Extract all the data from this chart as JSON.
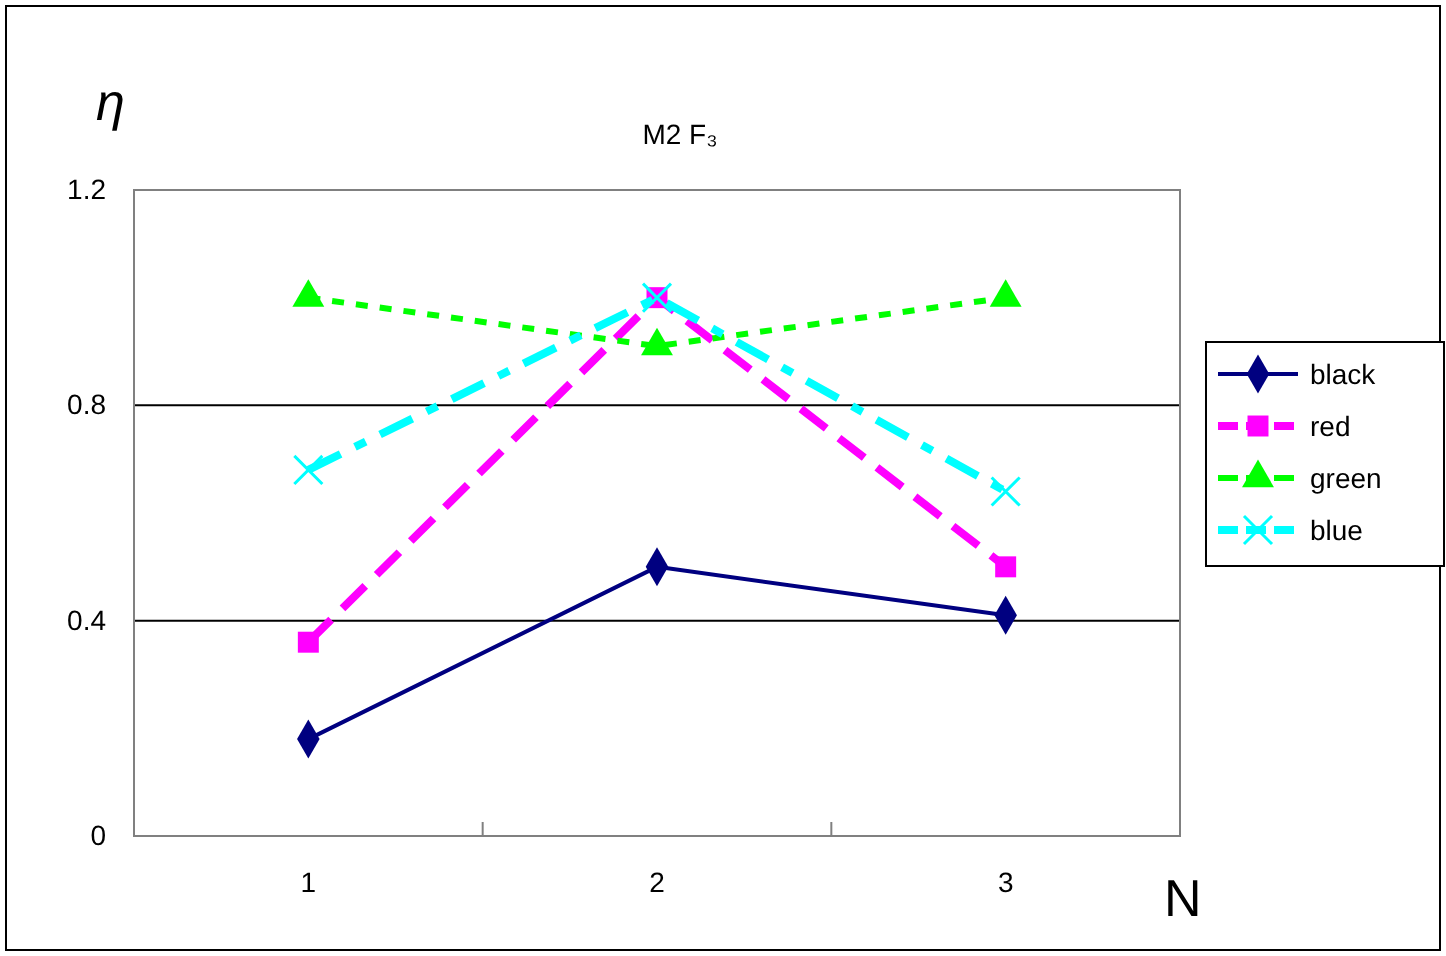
{
  "chart_data": {
    "type": "line",
    "title": "M2 F₃",
    "xlabel": "N",
    "ylabel": "η",
    "categories": [
      "1",
      "2",
      "3"
    ],
    "series": [
      {
        "name": "black",
        "color": "#000080",
        "marker": "diamond",
        "line_style": "solid",
        "values": [
          0.18,
          0.5,
          0.41
        ]
      },
      {
        "name": "red",
        "color": "#ff00ff",
        "marker": "square",
        "line_style": "dashed",
        "values": [
          0.36,
          1.0,
          0.5
        ]
      },
      {
        "name": "green",
        "color": "#00ff00",
        "marker": "triangle",
        "line_style": "dotted",
        "values": [
          1.0,
          0.91,
          1.0
        ]
      },
      {
        "name": "blue",
        "color": "#00ffff",
        "marker": "cross",
        "line_style": "dashdot",
        "values": [
          0.68,
          1.0,
          0.64
        ]
      }
    ],
    "ylim": [
      0,
      1.2
    ],
    "yticks": [
      {
        "value": 0,
        "label": "0"
      },
      {
        "value": 0.4,
        "label": "0.4"
      },
      {
        "value": 0.8,
        "label": "0.8"
      },
      {
        "value": 1.2,
        "label": "1.2"
      }
    ],
    "grid": "y",
    "legend": "right"
  }
}
